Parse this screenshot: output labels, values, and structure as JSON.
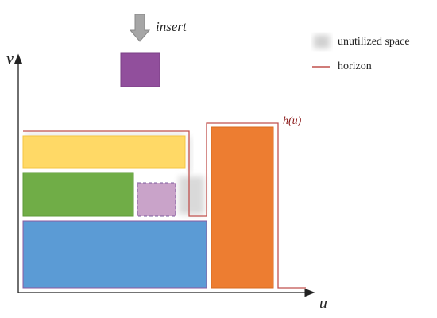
{
  "diagram": {
    "insert_label": "insert",
    "v_axis_label": "v",
    "u_axis_label": "u",
    "horizon_label": "h(u)",
    "legend": [
      {
        "label": "unutilized space"
      },
      {
        "label": "horizon"
      }
    ]
  }
}
